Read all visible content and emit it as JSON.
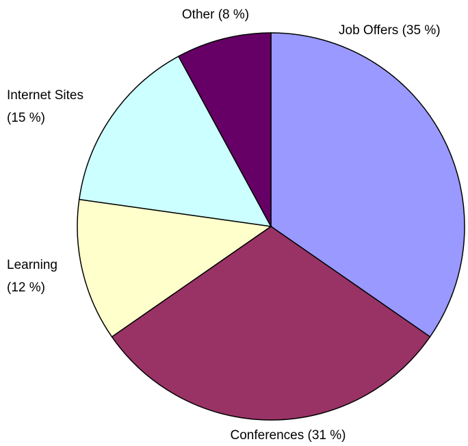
{
  "chart_data": {
    "type": "pie",
    "categories": [
      "Job Offers",
      "Conferences",
      "Learning",
      "Internet Sites",
      "Other"
    ],
    "values": [
      35,
      31,
      12,
      15,
      8
    ],
    "value_labels": [
      "(35 %)",
      "(31 %)",
      "(12 %)",
      "(15 %)",
      "(8 %)"
    ],
    "colors": [
      "#9999ff",
      "#993366",
      "#ffffcc",
      "#ccffff",
      "#660066"
    ]
  }
}
